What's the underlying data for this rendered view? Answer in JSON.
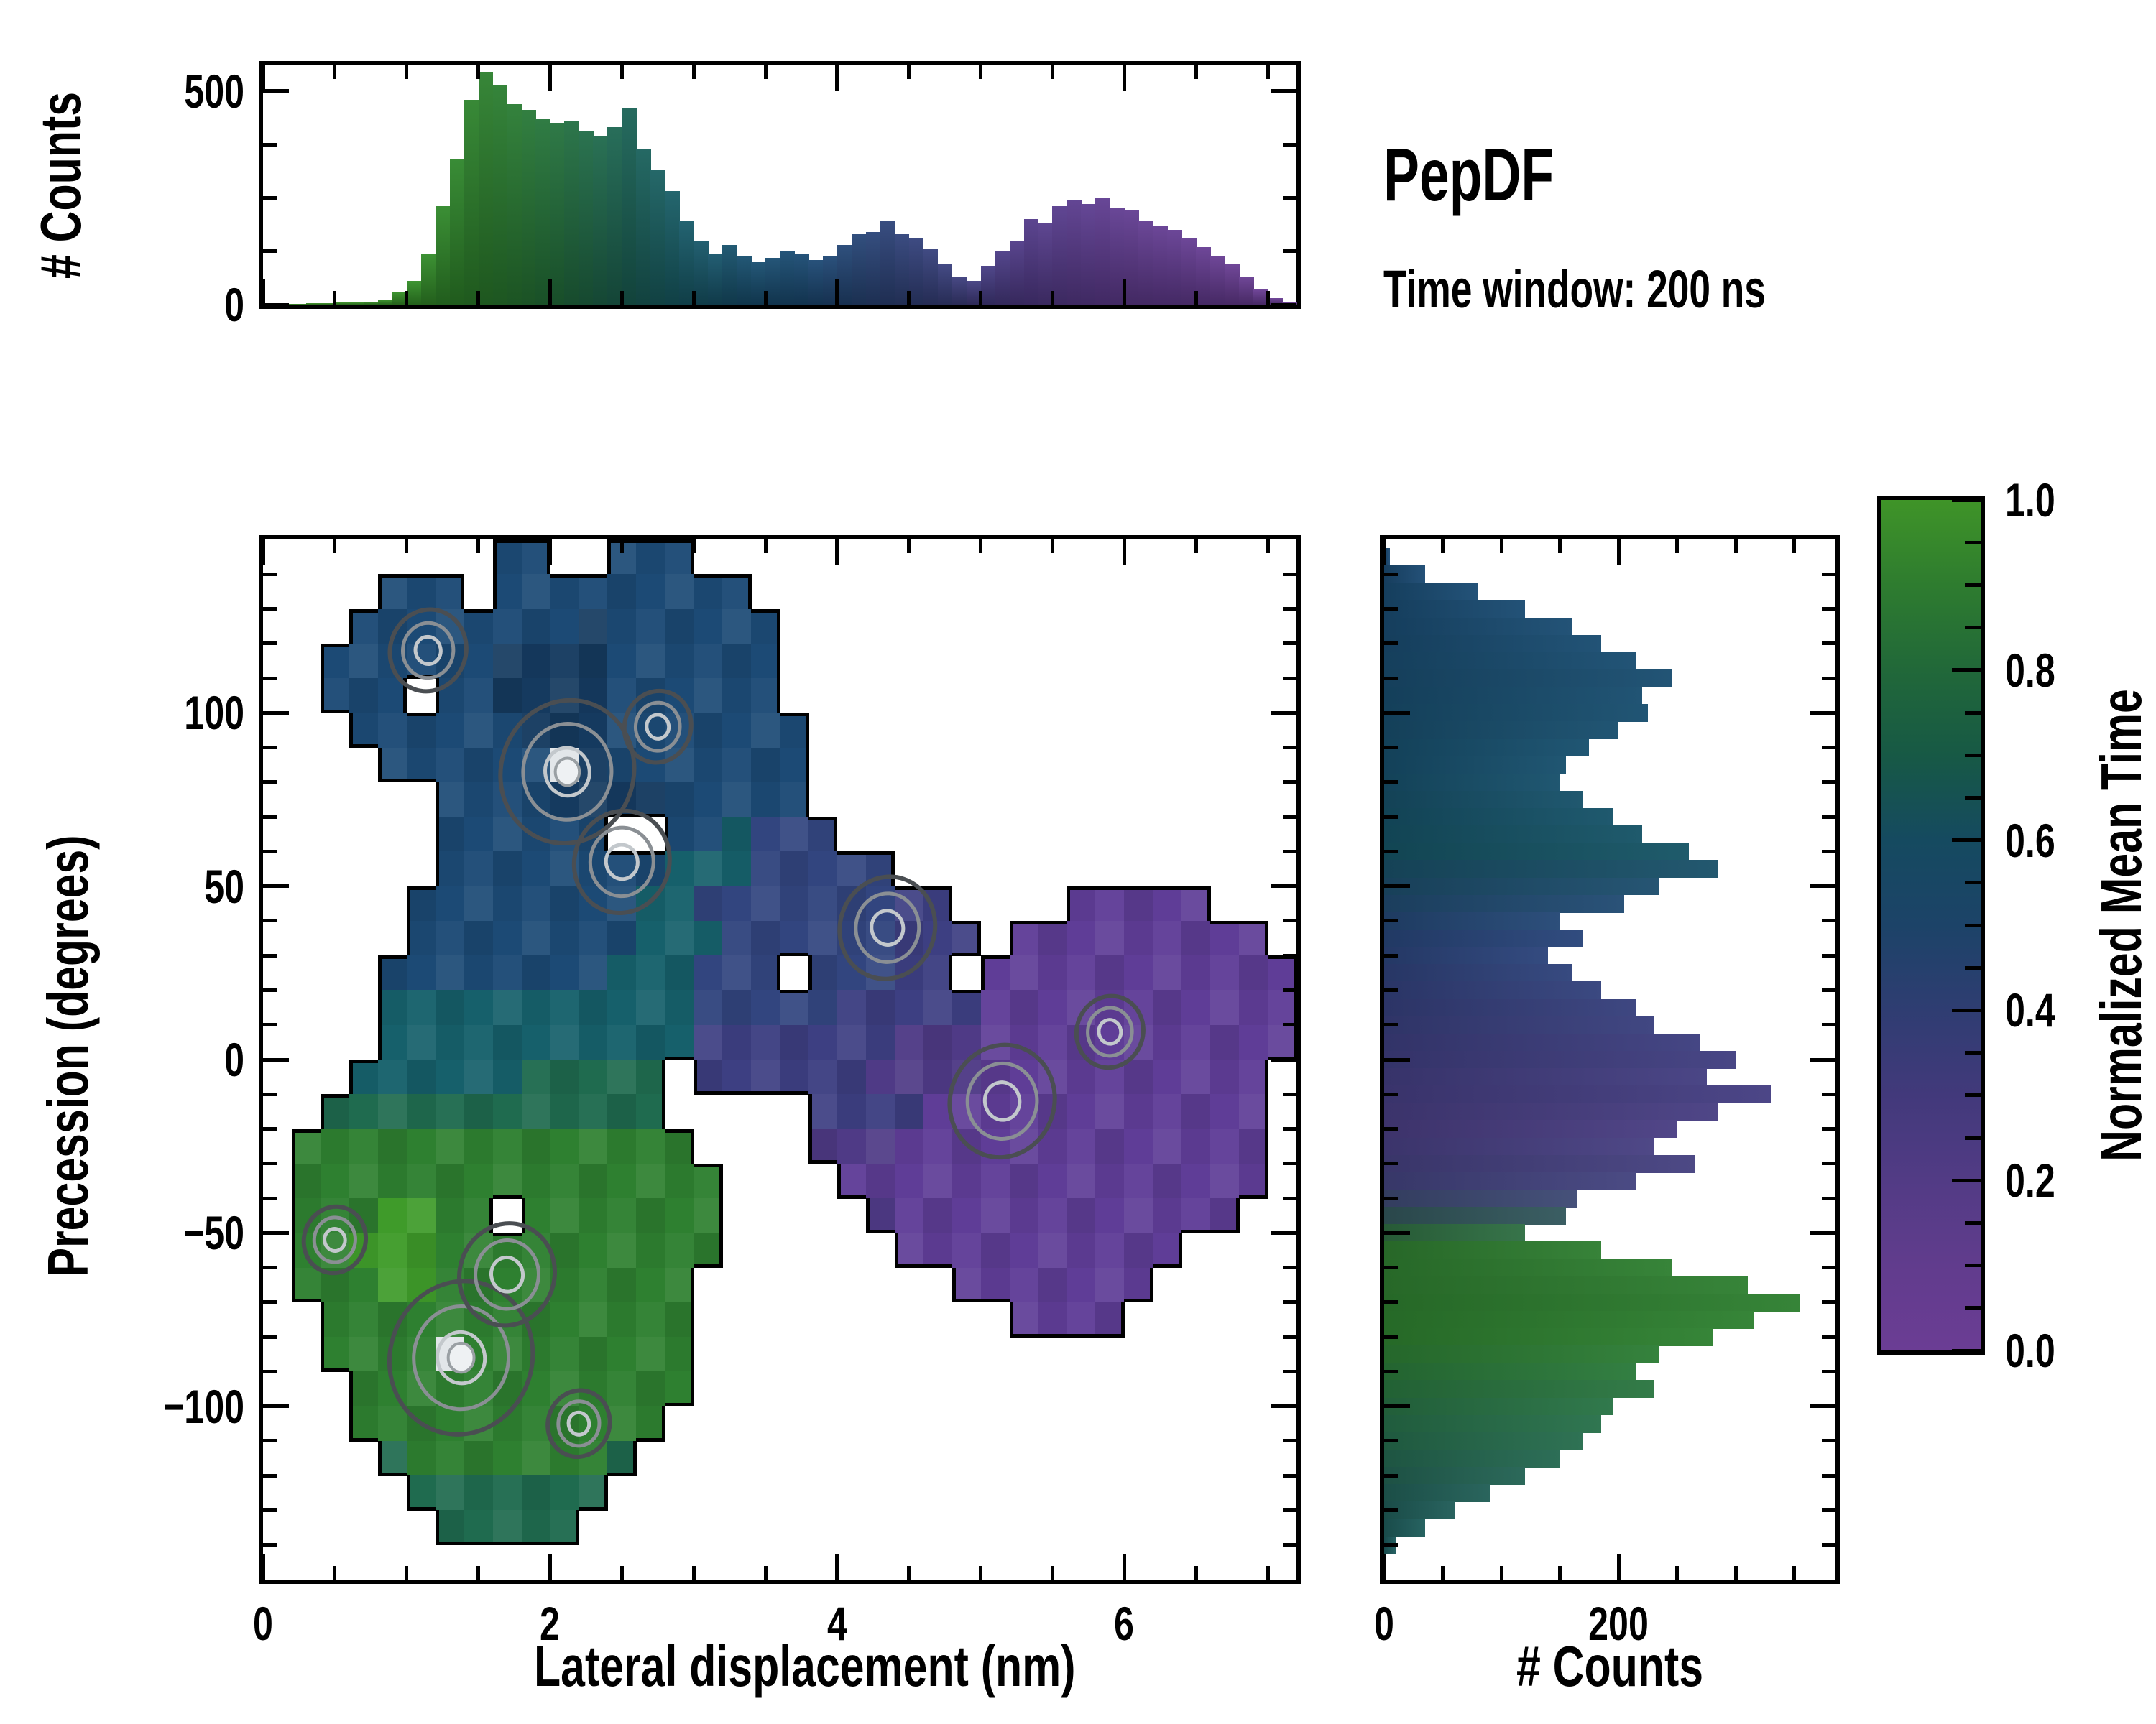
{
  "page_title": "PepDF",
  "subtitle": "Time window: 200 ns",
  "colors": {
    "background": "#ffffff",
    "axis": "#000000",
    "blob_outline": "#000000",
    "contour_dark": "#4a4e52",
    "contour_mid": "#8a8f94",
    "contour_light": "#c3c8cc",
    "hotspot_core": "#eef1f3"
  },
  "chart_data": [
    {
      "id": "top_histogram",
      "type": "bar",
      "ylabel": "# Counts",
      "x_start": 0.0,
      "bin_width": 0.1,
      "xlim": [
        0,
        7.2
      ],
      "ylim": [
        0,
        560
      ],
      "yticks_major": [
        0,
        500
      ],
      "yticks_minor": [
        125,
        250,
        375
      ],
      "xticks_major": [
        0,
        2,
        4,
        6
      ],
      "xtick_minor_step": 0.5,
      "values": [
        0,
        1,
        2,
        3,
        4,
        5,
        5,
        6,
        12,
        30,
        55,
        120,
        230,
        340,
        480,
        545,
        515,
        470,
        455,
        435,
        425,
        430,
        405,
        395,
        415,
        460,
        365,
        315,
        265,
        195,
        150,
        120,
        140,
        115,
        100,
        110,
        125,
        120,
        105,
        115,
        140,
        165,
        170,
        195,
        165,
        155,
        130,
        95,
        65,
        55,
        90,
        125,
        150,
        200,
        190,
        230,
        245,
        235,
        250,
        225,
        220,
        195,
        185,
        175,
        155,
        135,
        115,
        95,
        65,
        35,
        15,
        5
      ],
      "color_anchors": [
        [
          0.0,
          "#3f9428"
        ],
        [
          1.0,
          "#359027"
        ],
        [
          1.6,
          "#2b7f2e"
        ],
        [
          2.1,
          "#23703f"
        ],
        [
          2.5,
          "#1c6454"
        ],
        [
          2.9,
          "#175d68"
        ],
        [
          3.3,
          "#17506e"
        ],
        [
          3.8,
          "#1b4a73"
        ],
        [
          4.3,
          "#2c4478"
        ],
        [
          4.8,
          "#3c3f7e"
        ],
        [
          5.3,
          "#523b89"
        ],
        [
          5.9,
          "#613d92"
        ],
        [
          7.2,
          "#6b3d94"
        ]
      ]
    },
    {
      "id": "main_map",
      "type": "heatmap",
      "xlabel": "Lateral displacement (nm)",
      "ylabel": "Precession (degrees)",
      "xlim": [
        0,
        7.2
      ],
      "ylim": [
        -150,
        150
      ],
      "xticks_major": [
        0,
        2,
        4,
        6
      ],
      "xtick_minor_step": 0.5,
      "yticks_major": [
        -100,
        -50,
        0,
        50,
        100
      ],
      "ytick_minor_step": 10,
      "cell_x": 0.2,
      "cell_y": 10,
      "grid_y_top": 150,
      "palette": {
        "n": "#1c4a75",
        "d": "#153a5f",
        "t": "#16606b",
        "e": "#1f6b4f",
        "g": "#2e8030",
        "G": "#3f9b2a",
        "b": "#32457f",
        "v": "#3d3f82",
        "q": "#4f3a86",
        "p": "#5f3d97",
        "w": "#e2e6e9"
      },
      "rows": [
        "........nn..nnn.....................",
        "....nnn.nnnnnnnnn...................",
        "...nnnnnnnndnnnnnn..................",
        "..nnnnnnddddnnnnnn..................",
        "..nnn.nnddddnnnnnn..................",
        "...nnnnnndddnnnnnnn.................",
        "....nnnnnnwdnnnnnnn.................",
        "......nnnnddddnnnnn.................",
        "......nnnnnn..nntbbb................",
        "......nnnnnnnntttbbbbb..............",
        ".....nnnnnnnnttbbbbbbbvv....ppppp...",
        ".....nnnnnnnntttbbbbbbvvv.ppppppppp.",
        "....nnnnnnnntttbbb.bbbvv.ppppppppppp",
        "....tttttttttttbbbbbvvvvvppppppppppp",
        "....tttttttttttvvvvvvvqqqppppppppppp",
        "...tttttteeeee.vvvvvvqqqqpppppppppp.",
        "..eeeeeeeeeeee.....vvvvpppppppppppp.",
        ".gggggggggggggg....qqqppppppppppppp.",
        ".ggggggggggggggg....ppppppppppppppp.",
        ".gggGGgg.ggggggg.....qpppppppppppp..",
        ".ggGGGgggggggggg......pppppppppp....",
        ".gggGGggggggggg.........ppppppp.....",
        "..ggggggggggggg...........pppp......",
        "..ggggwgggggggg.....................",
        "...gggggggggggg.....................",
        "...ggggggggggg......................",
        "....eggggggge.......................",
        ".....eeeeeee........................",
        "......eeeee.........................",
        "...................................."
      ],
      "hotspots": [
        {
          "x": 2.12,
          "y": 83,
          "r": 0.28,
          "core": true
        },
        {
          "x": 2.5,
          "y": 57,
          "r": 0.2,
          "core": false
        },
        {
          "x": 1.15,
          "y": 118,
          "r": 0.16,
          "core": false
        },
        {
          "x": 2.75,
          "y": 96,
          "r": 0.14,
          "core": false
        },
        {
          "x": 4.35,
          "y": 38,
          "r": 0.2,
          "core": false
        },
        {
          "x": 5.15,
          "y": -12,
          "r": 0.22,
          "core": false
        },
        {
          "x": 5.9,
          "y": 8,
          "r": 0.14,
          "core": false
        },
        {
          "x": 1.38,
          "y": -86,
          "r": 0.3,
          "core": true
        },
        {
          "x": 1.7,
          "y": -62,
          "r": 0.2,
          "core": false
        },
        {
          "x": 0.5,
          "y": -52,
          "r": 0.13,
          "core": false
        },
        {
          "x": 2.2,
          "y": -105,
          "r": 0.13,
          "core": false
        }
      ]
    },
    {
      "id": "right_histogram",
      "type": "bar-horizontal",
      "xlabel": "# Counts",
      "y_start": 145,
      "bin_height": 5,
      "xlim": [
        0,
        385
      ],
      "ylim": [
        -150,
        150
      ],
      "xticks_major": [
        0,
        200
      ],
      "xticks_minor": [
        50,
        100,
        150,
        250,
        300,
        350
      ],
      "yticks_major": [
        -100,
        -50,
        0,
        50,
        100
      ],
      "ytick_minor_step": 10,
      "values": [
        5,
        35,
        80,
        120,
        160,
        185,
        215,
        245,
        220,
        225,
        200,
        175,
        155,
        150,
        170,
        195,
        220,
        260,
        285,
        235,
        205,
        150,
        170,
        140,
        160,
        185,
        215,
        230,
        270,
        300,
        275,
        330,
        285,
        250,
        230,
        265,
        215,
        165,
        155,
        120,
        185,
        245,
        310,
        355,
        315,
        280,
        235,
        215,
        230,
        195,
        185,
        170,
        150,
        120,
        90,
        60,
        35,
        10
      ],
      "color_anchors": [
        [
          145,
          "#1b4a73"
        ],
        [
          85,
          "#174f6c"
        ],
        [
          60,
          "#165465"
        ],
        [
          35,
          "#28457a"
        ],
        [
          15,
          "#363f7c"
        ],
        [
          0,
          "#403e80"
        ],
        [
          -20,
          "#4a3e83"
        ],
        [
          -38,
          "#42447e"
        ],
        [
          -47,
          "#2f5d52"
        ],
        [
          -53,
          "#2f7e31"
        ],
        [
          -80,
          "#2e8030"
        ],
        [
          -105,
          "#27704a"
        ],
        [
          -125,
          "#215f56"
        ],
        [
          -140,
          "#1d5a5c"
        ]
      ]
    },
    {
      "id": "colorbar",
      "type": "colorbar",
      "title": "Normalized Mean Time",
      "range": [
        0.0,
        1.0
      ],
      "ticks_major": [
        0.0,
        0.2,
        0.4,
        0.6,
        0.8,
        1.0
      ],
      "tick_minor_step": 0.05,
      "gradient_stops": [
        [
          0.0,
          "#6b3d94"
        ],
        [
          0.1,
          "#613c8d"
        ],
        [
          0.2,
          "#523b85"
        ],
        [
          0.3,
          "#42397b"
        ],
        [
          0.4,
          "#2f3d72"
        ],
        [
          0.5,
          "#1c4368"
        ],
        [
          0.6,
          "#154a60"
        ],
        [
          0.7,
          "#175945"
        ],
        [
          0.8,
          "#216839"
        ],
        [
          0.9,
          "#2e7c2f"
        ],
        [
          1.0,
          "#3f9428"
        ]
      ]
    }
  ]
}
